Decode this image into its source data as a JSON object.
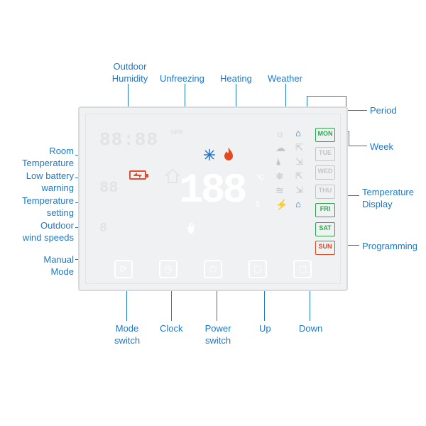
{
  "colors": {
    "label": "#2078c8",
    "panel_bg": "#eff1f3",
    "panel_border": "#d7d9db",
    "accent_blue": "#2575c9",
    "accent_red": "#e34a20",
    "accent_green": "#2fa84f",
    "dim": "#e1e3e5"
  },
  "labels": {
    "outdoor_humidity": "Outdoor\nHumidity",
    "unfreezing": "Unfreezing",
    "heating": "Heating",
    "weather": "Weather",
    "period": "Period",
    "week": "Week",
    "room_temperature": "Room\nTemperature",
    "low_battery": "Low battery\nwarning",
    "temperature_setting": "Temperature\nsetting",
    "outdoor_wind": "Outdoor\nwind speeds",
    "manual_mode": "Manual\nMode",
    "temperature_display": "Temperature\nDisplay",
    "programming": "Programming",
    "mode_switch": "Mode\nswitch",
    "clock": "Clock",
    "power_switch": "Power\nswitch",
    "up": "Up",
    "down": "Down"
  },
  "display": {
    "humidity_digits": "88:88",
    "humidity_unit": "%RH",
    "room_temp": "88",
    "wind": "8",
    "big_temp": "188",
    "deg_top": "°C",
    "deg_bot": "5"
  },
  "week": {
    "mon": "MON",
    "tue": "TUE",
    "wed": "WED",
    "thu": "THU",
    "fri": "FRI",
    "sat": "SAT",
    "sun": "SUN"
  },
  "buttons": {
    "mode": "⟳",
    "clock": "◷",
    "power": "⏻",
    "up": "▢",
    "down": "▢"
  }
}
